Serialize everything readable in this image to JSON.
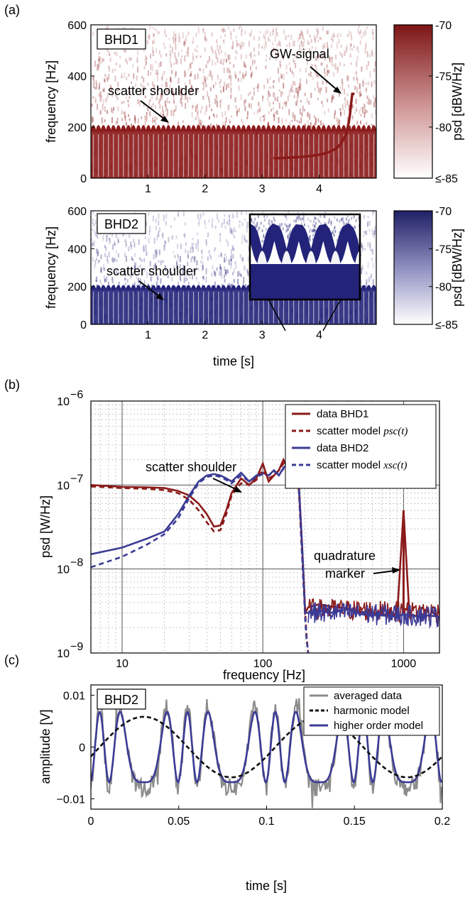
{
  "panel_labels": [
    "(a)",
    "(b)",
    "(c)"
  ],
  "colors": {
    "bhd1": "#8b1a1a",
    "bhd2": "#23237a",
    "bhd2_line": "#3b3b96",
    "gray": "#8c8c8c",
    "black": "#111111"
  },
  "chart_data": [
    {
      "type": "heatmap",
      "panel": "(a)",
      "tag": "BHD1",
      "ylabel": "frequency [Hz]",
      "xlabel": "",
      "xlim": [
        0,
        5
      ],
      "ylim": [
        0,
        600
      ],
      "xticks": [
        "1",
        "2",
        "3",
        "4"
      ],
      "yticks": [
        "0",
        "200",
        "400",
        "600"
      ],
      "colorbar": {
        "label": "psd [dBW/Hz]",
        "ticks": [
          "-70",
          "-75",
          "-80",
          "≤-85"
        ],
        "range": [
          -85,
          -70
        ],
        "color": "#8b1a1a"
      },
      "annotations": [
        "scatter shoulder",
        "GW-signal"
      ],
      "shoulder_band_hz": [
        0,
        215
      ],
      "arches_per_5s": 57
    },
    {
      "type": "heatmap",
      "panel": "(a)",
      "tag": "BHD2",
      "ylabel": "frequency [Hz]",
      "xlabel": "time [s]",
      "xlim": [
        0,
        5
      ],
      "ylim": [
        0,
        600
      ],
      "xticks": [
        "1",
        "2",
        "3",
        "4"
      ],
      "yticks": [
        "0",
        "200",
        "400",
        "600"
      ],
      "colorbar": {
        "label": "psd [dBW/Hz]",
        "ticks": [
          "-70",
          "-75",
          "-80",
          "≤-85"
        ],
        "range": [
          -85,
          -70
        ],
        "color": "#23237a"
      },
      "annotations": [
        "scatter shoulder"
      ],
      "shoulder_band_hz": [
        0,
        215
      ],
      "arches_per_5s": 57
    },
    {
      "type": "line",
      "panel": "(b)",
      "xlabel": "frequency [Hz]",
      "ylabel": "psd [W/Hz]",
      "xscale": "log",
      "yscale": "log",
      "xlim": [
        6,
        1800
      ],
      "ylim": [
        1e-09,
        1e-06
      ],
      "xticks": [
        "10",
        "100",
        "1000"
      ],
      "yticks": [
        "10",
        "10",
        "10",
        "10"
      ],
      "ytick_exponents": [
        "−9",
        "−8",
        "−7",
        "−6"
      ],
      "grid": true,
      "legend_position": "top-right",
      "legend": [
        "data BHD1",
        "scatter model",
        "data BHD2",
        "scatter model"
      ],
      "legend_math": [
        "",
        "psc(t)",
        "",
        "xsc(t)"
      ],
      "annotations": [
        "scatter shoulder",
        "quadrature",
        "marker"
      ],
      "series": [
        {
          "name": "data BHD1",
          "style": "solid",
          "color": "#8b1a1a",
          "x": [
            6,
            10,
            15,
            20,
            25,
            30,
            35,
            40,
            45,
            50,
            55,
            60,
            70,
            80,
            90,
            100,
            110,
            120,
            130,
            140,
            150,
            160,
            170,
            180,
            190,
            200,
            210,
            250,
            300,
            400,
            500,
            700,
            900,
            1000,
            1100,
            1300,
            1500,
            1800
          ],
          "y": [
            1e-07,
            9.5e-08,
            9.4e-08,
            9.2e-08,
            8.5e-08,
            7.5e-08,
            6e-08,
            4.5e-08,
            3.2e-08,
            3.3e-08,
            5e-08,
            8e-08,
            1.2e-07,
            1e-07,
            1.2e-07,
            1.8e-07,
            1.1e-07,
            1.3e-07,
            1.5e-07,
            2e-07,
            1.6e-07,
            1.8e-07,
            1.7e-07,
            1e-07,
            2e-08,
            3e-09,
            3.5e-09,
            3.8e-09,
            3.6e-09,
            3.4e-09,
            3.1e-09,
            2.9e-09,
            2.7e-09,
            5e-08,
            2.9e-09,
            2.7e-09,
            2.8e-09,
            2.7e-09
          ]
        },
        {
          "name": "scatter model",
          "style": "dashed",
          "color": "#8b1a1a",
          "x": [
            6,
            10,
            15,
            20,
            25,
            30,
            35,
            40,
            45,
            50,
            55,
            60,
            70,
            80,
            90,
            100,
            110,
            120,
            130,
            140,
            150,
            160,
            170,
            180,
            190,
            200,
            205,
            210
          ],
          "y": [
            9.6e-08,
            9.2e-08,
            9e-08,
            8.7e-08,
            8e-08,
            6.7e-08,
            5e-08,
            3.6e-08,
            2.8e-08,
            2.9e-08,
            4.5e-08,
            7.5e-08,
            1.05e-07,
            1e-07,
            1.15e-07,
            1.5e-07,
            1.2e-07,
            1.3e-07,
            1.5e-07,
            1.8e-07,
            1.7e-07,
            1.9e-07,
            1.6e-07,
            9e-08,
            1.5e-08,
            3e-09,
            1.5e-09,
            1e-09
          ]
        },
        {
          "name": "data BHD2",
          "style": "solid",
          "color": "#3b3b96",
          "x": [
            6,
            10,
            15,
            20,
            25,
            30,
            35,
            40,
            45,
            50,
            55,
            60,
            70,
            80,
            90,
            100,
            110,
            120,
            130,
            140,
            150,
            160,
            170,
            180,
            190,
            200,
            210,
            250,
            300,
            400,
            500,
            700,
            900,
            1000,
            1100,
            1300,
            1500,
            1800
          ],
          "y": [
            1.5e-08,
            1.8e-08,
            2.3e-08,
            2.8e-08,
            4.5e-08,
            7.5e-08,
            1.1e-07,
            1.3e-07,
            1.35e-07,
            1.3e-07,
            1.2e-07,
            1.1e-07,
            1.4e-07,
            1.1e-07,
            1.3e-07,
            1.4e-07,
            1.3e-07,
            1.5e-07,
            1.3e-07,
            1.6e-07,
            1.8e-07,
            2.7e-07,
            1.5e-07,
            1.1e-07,
            2e-08,
            3e-09,
            3e-09,
            3.2e-09,
            3e-09,
            3.3e-09,
            2.9e-09,
            2.8e-09,
            2.7e-09,
            2.9e-09,
            2.8e-09,
            2.7e-09,
            2.8e-09,
            2.7e-09
          ]
        },
        {
          "name": "scatter model",
          "style": "dashed",
          "color": "#3b3b96",
          "x": [
            6,
            10,
            15,
            20,
            25,
            30,
            35,
            40,
            45,
            50,
            55,
            60,
            70,
            80,
            90,
            100,
            110,
            120,
            130,
            140,
            150,
            160,
            170,
            180,
            190,
            200,
            205,
            210
          ],
          "y": [
            1.05e-08,
            1.4e-08,
            1.95e-08,
            2.6e-08,
            4e-08,
            7e-08,
            1.05e-07,
            1.25e-07,
            1.3e-07,
            1.25e-07,
            1.15e-07,
            1.05e-07,
            1.3e-07,
            1.1e-07,
            1.25e-07,
            1.35e-07,
            1.3e-07,
            1.45e-07,
            1.35e-07,
            1.55e-07,
            1.75e-07,
            2.4e-07,
            1.6e-07,
            1e-07,
            1.5e-08,
            2.5e-09,
            1.4e-09,
            1e-09
          ]
        }
      ]
    },
    {
      "type": "line",
      "panel": "(c)",
      "tag": "BHD2",
      "xlabel": "time [s]",
      "ylabel": "amplitude [V]",
      "xlim": [
        0,
        0.2
      ],
      "ylim": [
        -0.012,
        0.012
      ],
      "xticks": [
        "0",
        "0.05",
        "0.1",
        "0.15",
        "0.2"
      ],
      "xtick_values": [
        0,
        0.05,
        0.1,
        0.15,
        0.2
      ],
      "yticks": [
        "−0.01",
        "0",
        "0.01"
      ],
      "ytick_values": [
        -0.01,
        0,
        0.01
      ],
      "legend_position": "top-right",
      "legend": [
        "averaged data",
        "harmonic model",
        "higher order model"
      ],
      "series": [
        {
          "name": "averaged data",
          "color": "#8c8c8c",
          "style": "solid"
        },
        {
          "name": "harmonic model",
          "color": "#111111",
          "style": "dashed",
          "amplitude": 0.0065,
          "period_s": 0.1,
          "phase_peak_s": 0.03
        },
        {
          "name": "higher order model",
          "color": "#3b3b96",
          "style": "solid",
          "amplitude": 0.0068,
          "fringe_modulation": 3.0,
          "period_s": 0.1,
          "phase_peak_s": 0.03
        }
      ]
    }
  ]
}
